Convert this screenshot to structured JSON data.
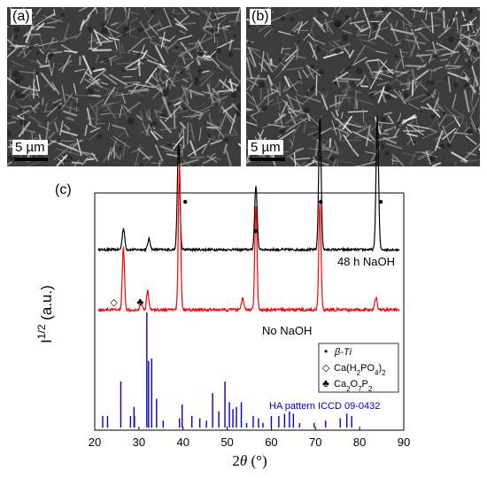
{
  "panels": [
    {
      "label": "(a)",
      "scalebar": "5 µm"
    },
    {
      "label": "(b)",
      "scalebar": "5 µm"
    }
  ],
  "chart_data": {
    "label": "(c)",
    "type": "line",
    "xlabel_html": "2θ (°)",
    "ylabel": "I",
    "ylabel_sup": "1/2",
    "ylabel_suffix": " (a.u.)",
    "xlim": [
      20,
      90
    ],
    "xticks": [
      20,
      30,
      40,
      50,
      60,
      70,
      80,
      90
    ],
    "series": [
      {
        "name": "48 h NaOH",
        "color": "#000000"
      },
      {
        "name": "No NaOH",
        "color": "#ff0000"
      },
      {
        "name": "HA pattern ICCD 09-0432",
        "color": "#0000cc"
      }
    ],
    "peaks_48h": [
      [
        26.5,
        24
      ],
      [
        32.3,
        12
      ],
      [
        39.0,
        120
      ],
      [
        56.5,
        72
      ],
      [
        71.0,
        150
      ],
      [
        84.0,
        150
      ]
    ],
    "peaks_no_naoh": [
      [
        26.5,
        70
      ],
      [
        30.5,
        8
      ],
      [
        32.0,
        22
      ],
      [
        39.2,
        165
      ],
      [
        53.5,
        14
      ],
      [
        56.5,
        116
      ],
      [
        71.0,
        120
      ],
      [
        83.7,
        14
      ]
    ],
    "beta_ti_markers": [
      40.5,
      56.4,
      71.2,
      84.8
    ],
    "ca_h2po4_marker": 24.5,
    "ca2o7p2_marker": 30.5,
    "ha_sticks": [
      [
        21.8,
        10
      ],
      [
        22.9,
        10
      ],
      [
        25.9,
        40
      ],
      [
        28.1,
        10
      ],
      [
        28.9,
        18
      ],
      [
        29.0,
        10
      ],
      [
        31.8,
        100
      ],
      [
        32.2,
        58
      ],
      [
        32.9,
        60
      ],
      [
        34.0,
        25
      ],
      [
        35.5,
        6
      ],
      [
        39.2,
        8
      ],
      [
        39.8,
        20
      ],
      [
        42.0,
        10
      ],
      [
        43.8,
        8
      ],
      [
        45.3,
        6
      ],
      [
        46.7,
        30
      ],
      [
        48.1,
        14
      ],
      [
        49.5,
        40
      ],
      [
        50.5,
        22
      ],
      [
        51.3,
        16
      ],
      [
        52.1,
        18
      ],
      [
        53.2,
        22
      ],
      [
        54.4,
        4
      ],
      [
        55.9,
        10
      ],
      [
        57.1,
        8
      ],
      [
        58.1,
        4
      ],
      [
        60.0,
        10
      ],
      [
        61.7,
        10
      ],
      [
        63.0,
        12
      ],
      [
        64.1,
        14
      ],
      [
        65.0,
        12
      ],
      [
        66.4,
        4
      ],
      [
        69.7,
        4
      ],
      [
        72.3,
        6
      ],
      [
        75.6,
        8
      ],
      [
        77.1,
        12
      ],
      [
        78.2,
        10
      ]
    ],
    "legend": [
      {
        "symbol": "•",
        "text": "β-Ti"
      },
      {
        "symbol": "◇",
        "text": "Ca(H",
        "sub1": "2",
        "mid": "PO",
        "sub2": "4",
        "end": ")",
        "sub3": "2"
      },
      {
        "symbol": "♣",
        "text": "Ca",
        "sub1": "2",
        "mid": "O",
        "sub2": "7",
        "end": "P",
        "sub3": "2"
      }
    ]
  }
}
